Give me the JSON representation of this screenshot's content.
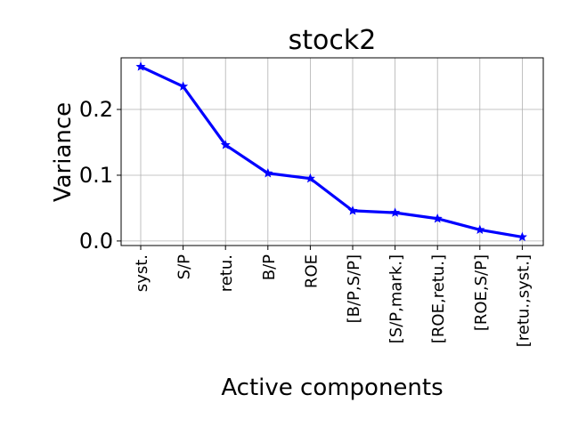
{
  "chart_data": {
    "type": "line",
    "title": "stock2",
    "xlabel": "Active components",
    "ylabel": "Variance",
    "categories": [
      "syst.",
      "S/P",
      "retu.",
      "B/P",
      "ROE",
      "[B/P,S/P]",
      "[S/P,mark.]",
      "[ROE,retu.]",
      "[ROE,S/P]",
      "[retu.,syst.]"
    ],
    "series": [
      {
        "values": [
          0.265,
          0.235,
          0.146,
          0.103,
          0.095,
          0.046,
          0.043,
          0.034,
          0.017,
          0.006
        ],
        "color": "#0000ff",
        "marker": "star"
      }
    ],
    "ylim": [
      -0.0069,
      0.2785
    ],
    "yticks": [
      0.0,
      0.1,
      0.2
    ],
    "ytick_labels": [
      "0.0",
      "0.1",
      "0.2"
    ],
    "grid": true,
    "legend": "none"
  }
}
